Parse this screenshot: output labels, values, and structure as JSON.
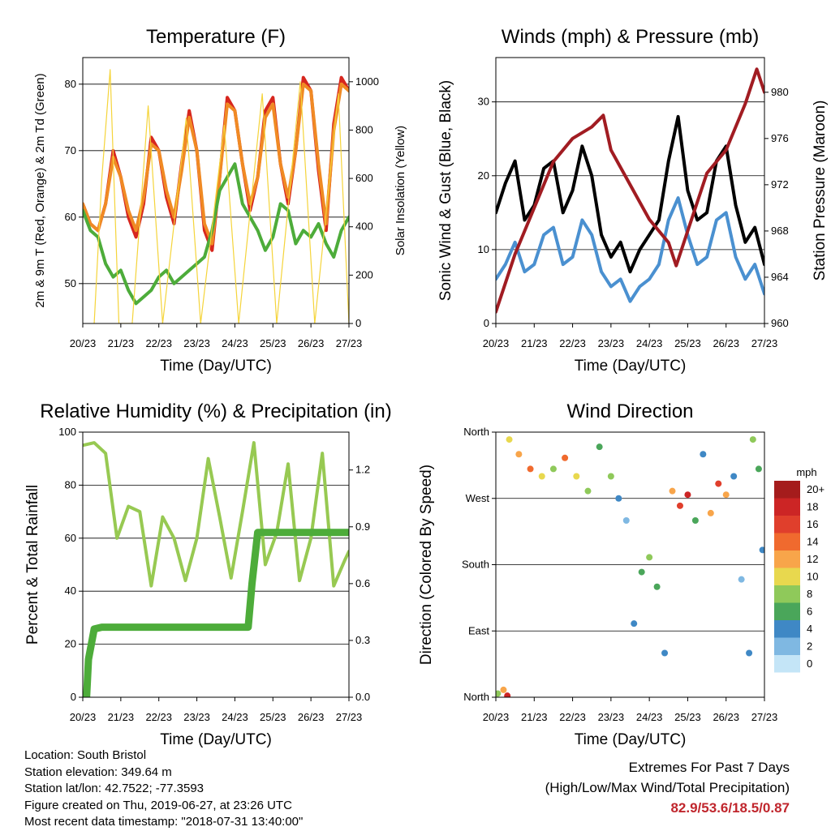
{
  "chart_data": [
    {
      "type": "line",
      "title": "Temperature (F)",
      "xlabel": "Time (Day/UTC)",
      "ylabel": "2m & 9m T (Red, Orange) & 2m Td (Green)",
      "y2label": "Solar Insolation (Yellow)",
      "x_ticks": [
        "20/23",
        "21/23",
        "22/23",
        "23/23",
        "24/23",
        "25/23",
        "26/23",
        "27/23"
      ],
      "ylim": [
        44,
        84
      ],
      "y_ticks": [
        50,
        60,
        70,
        80
      ],
      "y2lim": [
        0,
        1100
      ],
      "y2_ticks": [
        0,
        200,
        400,
        600,
        800,
        1000
      ],
      "grid": "horizontal",
      "series": [
        {
          "color": "#d7261e",
          "x": [
            0,
            0.2,
            0.4,
            0.6,
            0.8,
            1.0,
            1.2,
            1.4,
            1.6,
            1.8,
            2.0,
            2.2,
            2.4,
            2.6,
            2.8,
            3.0,
            3.2,
            3.4,
            3.6,
            3.8,
            4.0,
            4.2,
            4.4,
            4.6,
            4.8,
            5.0,
            5.2,
            5.4,
            5.6,
            5.8,
            6.0,
            6.2,
            6.4,
            6.6,
            6.8,
            7.0
          ],
          "values": [
            62,
            59,
            58,
            62,
            70,
            66,
            60,
            57,
            62,
            72,
            70,
            63,
            59,
            68,
            76,
            70,
            58,
            55,
            66,
            78,
            76,
            68,
            61,
            66,
            76,
            78,
            68,
            62,
            70,
            81,
            79,
            67,
            58,
            74,
            81,
            79
          ]
        },
        {
          "color": "#f08a24",
          "x": [
            0,
            0.2,
            0.4,
            0.6,
            0.8,
            1.0,
            1.2,
            1.4,
            1.6,
            1.8,
            2.0,
            2.2,
            2.4,
            2.6,
            2.8,
            3.0,
            3.2,
            3.4,
            3.6,
            3.8,
            4.0,
            4.2,
            4.4,
            4.6,
            4.8,
            5.0,
            5.2,
            5.4,
            5.6,
            5.8,
            6.0,
            6.2,
            6.4,
            6.6,
            6.8,
            7.0
          ],
          "values": [
            62,
            59,
            58,
            62,
            69,
            66,
            61,
            58,
            63,
            71,
            70,
            64,
            60,
            67,
            75,
            70,
            59,
            56,
            66,
            77,
            76,
            68,
            62,
            66,
            75,
            77,
            68,
            63,
            70,
            80,
            79,
            68,
            59,
            73,
            80,
            79
          ]
        },
        {
          "color": "#4dac3a",
          "x": [
            0,
            0.2,
            0.4,
            0.6,
            0.8,
            1.0,
            1.2,
            1.4,
            1.6,
            1.8,
            2.0,
            2.2,
            2.4,
            2.6,
            2.8,
            3.0,
            3.2,
            3.4,
            3.6,
            3.8,
            4.0,
            4.2,
            4.4,
            4.6,
            4.8,
            5.0,
            5.2,
            5.4,
            5.6,
            5.8,
            6.0,
            6.2,
            6.4,
            6.6,
            6.8,
            7.0
          ],
          "values": [
            61,
            58,
            57,
            53,
            51,
            52,
            49,
            47,
            48,
            49,
            51,
            52,
            50,
            51,
            52,
            53,
            54,
            58,
            64,
            66,
            68,
            62,
            60,
            58,
            55,
            57,
            62,
            61,
            56,
            58,
            57,
            59,
            56,
            54,
            58,
            60
          ]
        },
        {
          "color": "#f5d43a",
          "axis": "y2",
          "x": [
            0.3,
            0.5,
            0.72,
            0.95,
            1.3,
            1.72,
            2.1,
            2.72,
            3.1,
            3.72,
            4.1,
            4.72,
            5.1,
            5.72,
            6.1,
            6.72,
            7.0
          ],
          "values": [
            0,
            600,
            1050,
            0,
            0,
            900,
            0,
            850,
            0,
            820,
            0,
            950,
            0,
            1000,
            0,
            950,
            0
          ]
        }
      ]
    },
    {
      "type": "line",
      "title": "Winds (mph) & Pressure (mb)",
      "xlabel": "Time (Day/UTC)",
      "ylabel": "Sonic Wind & Gust (Blue, Black)",
      "y2label": "Station Pressure (Maroon)",
      "x_ticks": [
        "20/23",
        "21/23",
        "22/23",
        "23/23",
        "24/23",
        "25/23",
        "26/23",
        "27/23"
      ],
      "ylim": [
        0,
        36
      ],
      "y_ticks": [
        0,
        10,
        20,
        30
      ],
      "y2lim": [
        960,
        983
      ],
      "y2_ticks": [
        960,
        964,
        968,
        972,
        976,
        980
      ],
      "grid": "horizontal",
      "series": [
        {
          "color": "#000000",
          "x": [
            0,
            0.25,
            0.5,
            0.75,
            1.0,
            1.25,
            1.5,
            1.75,
            2.0,
            2.25,
            2.5,
            2.75,
            3.0,
            3.25,
            3.5,
            3.75,
            4.0,
            4.25,
            4.5,
            4.75,
            5.0,
            5.25,
            5.5,
            5.75,
            6.0,
            6.25,
            6.5,
            6.75,
            7.0
          ],
          "values": [
            15,
            19,
            22,
            14,
            16,
            21,
            22,
            15,
            18,
            24,
            20,
            12,
            9,
            11,
            7,
            10,
            12,
            14,
            22,
            28,
            18,
            14,
            15,
            22,
            24,
            16,
            11,
            13,
            8
          ]
        },
        {
          "color": "#4a90d0",
          "x": [
            0,
            0.25,
            0.5,
            0.75,
            1.0,
            1.25,
            1.5,
            1.75,
            2.0,
            2.25,
            2.5,
            2.75,
            3.0,
            3.25,
            3.5,
            3.75,
            4.0,
            4.25,
            4.5,
            4.75,
            5.0,
            5.25,
            5.5,
            5.75,
            6.0,
            6.25,
            6.5,
            6.75,
            7.0
          ],
          "values": [
            6,
            8,
            11,
            7,
            8,
            12,
            13,
            8,
            9,
            14,
            12,
            7,
            5,
            6,
            3,
            5,
            6,
            8,
            14,
            17,
            12,
            8,
            9,
            14,
            15,
            9,
            6,
            8,
            4
          ]
        },
        {
          "color": "#a11c22",
          "axis": "y2",
          "x": [
            0,
            0.5,
            1.0,
            1.5,
            2.0,
            2.5,
            2.8,
            3.0,
            3.5,
            4.0,
            4.5,
            4.7,
            5.0,
            5.5,
            6.0,
            6.5,
            6.8,
            7.0
          ],
          "values": [
            961,
            966,
            970,
            974,
            976,
            977,
            978,
            975,
            972,
            969,
            967,
            965,
            968,
            973,
            975,
            979,
            982,
            980
          ]
        }
      ]
    },
    {
      "type": "line",
      "title": "Relative Humidity (%) & Precipitation (in)",
      "xlabel": "Time (Day/UTC)",
      "ylabel": "Percent & Total Rainfall",
      "x_ticks": [
        "20/23",
        "21/23",
        "22/23",
        "23/23",
        "24/23",
        "25/23",
        "26/23",
        "27/23"
      ],
      "ylim": [
        0,
        100
      ],
      "y_ticks": [
        0,
        20,
        40,
        60,
        80,
        100
      ],
      "y2lim": [
        0,
        1.4
      ],
      "y2_ticks": [
        "0.0",
        "0.3",
        "0.6",
        "0.9",
        "1.2"
      ],
      "grid": "horizontal",
      "series": [
        {
          "color": "#97c952",
          "x": [
            0,
            0.3,
            0.6,
            0.9,
            1.2,
            1.5,
            1.8,
            2.1,
            2.4,
            2.7,
            3.0,
            3.3,
            3.6,
            3.9,
            4.2,
            4.5,
            4.8,
            5.1,
            5.4,
            5.7,
            6.0,
            6.3,
            6.6,
            6.9,
            7.0
          ],
          "values": [
            95,
            96,
            92,
            60,
            72,
            70,
            42,
            68,
            60,
            44,
            60,
            90,
            68,
            45,
            70,
            96,
            50,
            62,
            88,
            44,
            60,
            92,
            42,
            52,
            55
          ]
        },
        {
          "color": "#4dac3a",
          "axis": "y2",
          "x": [
            0,
            0.1,
            0.15,
            0.3,
            0.5,
            1.0,
            2.0,
            3.0,
            4.0,
            4.35,
            4.45,
            4.6,
            5.0,
            6.0,
            7.0
          ],
          "values": [
            0,
            0,
            0.2,
            0.36,
            0.37,
            0.37,
            0.37,
            0.37,
            0.37,
            0.37,
            0.6,
            0.87,
            0.87,
            0.87,
            0.87
          ]
        }
      ]
    },
    {
      "type": "scatter",
      "title": "Wind Direction",
      "xlabel": "Time (Day/UTC)",
      "ylabel": "Direction (Colored By Speed)",
      "x_ticks": [
        "20/23",
        "21/23",
        "22/23",
        "23/23",
        "24/23",
        "25/23",
        "26/23",
        "27/23"
      ],
      "y_ticks": [
        "North",
        "East",
        "South",
        "West",
        "North"
      ],
      "ylim": [
        0,
        360
      ],
      "grid": "horizontal",
      "legend": {
        "title": "mph",
        "labels": [
          "20+",
          "18",
          "16",
          "14",
          "12",
          "10",
          "8",
          "6",
          "4",
          "2",
          "0"
        ],
        "colors": [
          "#a51c1c",
          "#cc2525",
          "#e03f2c",
          "#f06a2e",
          "#f8a54a",
          "#e8d84e",
          "#8fc95a",
          "#4aa65a",
          "#3f88c5",
          "#7fb8e2",
          "#c4e5f7"
        ]
      },
      "points": [
        {
          "x": 0.05,
          "y": 5,
          "speed": 8
        },
        {
          "x": 0.2,
          "y": 10,
          "speed": 12
        },
        {
          "x": 0.3,
          "y": 2,
          "speed": 18
        },
        {
          "x": 0.35,
          "y": 350,
          "speed": 10
        },
        {
          "x": 0.6,
          "y": 330,
          "speed": 12
        },
        {
          "x": 0.9,
          "y": 310,
          "speed": 14
        },
        {
          "x": 1.2,
          "y": 300,
          "speed": 10
        },
        {
          "x": 1.5,
          "y": 310,
          "speed": 8
        },
        {
          "x": 1.8,
          "y": 325,
          "speed": 14
        },
        {
          "x": 2.1,
          "y": 300,
          "speed": 10
        },
        {
          "x": 2.4,
          "y": 280,
          "speed": 8
        },
        {
          "x": 2.7,
          "y": 340,
          "speed": 6
        },
        {
          "x": 3.0,
          "y": 300,
          "speed": 8
        },
        {
          "x": 3.2,
          "y": 270,
          "speed": 4
        },
        {
          "x": 3.4,
          "y": 240,
          "speed": 2
        },
        {
          "x": 3.6,
          "y": 100,
          "speed": 4
        },
        {
          "x": 3.8,
          "y": 170,
          "speed": 6
        },
        {
          "x": 4.0,
          "y": 190,
          "speed": 8
        },
        {
          "x": 4.2,
          "y": 150,
          "speed": 6
        },
        {
          "x": 4.4,
          "y": 60,
          "speed": 4
        },
        {
          "x": 4.6,
          "y": 280,
          "speed": 12
        },
        {
          "x": 4.8,
          "y": 260,
          "speed": 16
        },
        {
          "x": 5.0,
          "y": 275,
          "speed": 18
        },
        {
          "x": 5.2,
          "y": 240,
          "speed": 6
        },
        {
          "x": 5.4,
          "y": 330,
          "speed": 4
        },
        {
          "x": 5.6,
          "y": 250,
          "speed": 12
        },
        {
          "x": 5.8,
          "y": 290,
          "speed": 16
        },
        {
          "x": 6.0,
          "y": 275,
          "speed": 12
        },
        {
          "x": 6.2,
          "y": 300,
          "speed": 4
        },
        {
          "x": 6.4,
          "y": 160,
          "speed": 2
        },
        {
          "x": 6.6,
          "y": 60,
          "speed": 4
        },
        {
          "x": 6.7,
          "y": 350,
          "speed": 8
        },
        {
          "x": 6.85,
          "y": 310,
          "speed": 6
        },
        {
          "x": 6.95,
          "y": 200,
          "speed": 4
        }
      ]
    }
  ],
  "info": {
    "location": "Location: South Bristol",
    "elevation": "Station elevation: 349.64 m",
    "latlon": "Station lat/lon: 42.7522; -77.3593",
    "created": "Figure created on Thu, 2019-06-27, at 23:26 UTC",
    "recent": "Most recent data timestamp: \"2018-07-31 13:40:00\""
  },
  "extremes": {
    "title": "Extremes For Past 7 Days",
    "subtitle": "(High/Low/Max Wind/Total Precipitation)",
    "values": "82.9/53.6/18.5/0.87"
  }
}
